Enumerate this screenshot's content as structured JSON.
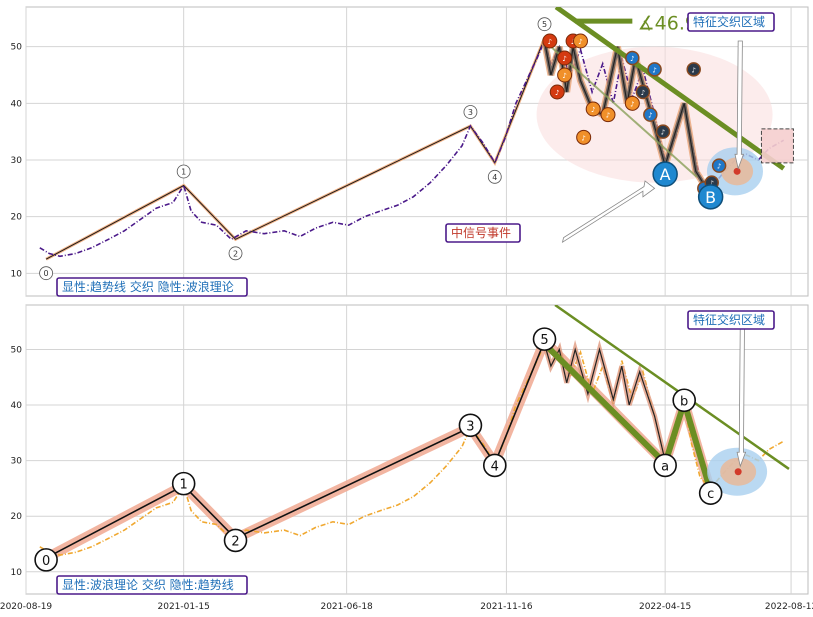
{
  "chart_data": [
    {
      "type": "line",
      "panel": "top",
      "xlim": [
        "2020-08-19",
        "2022-08-28"
      ],
      "ylim": [
        6,
        57
      ],
      "yticks": [
        10,
        20,
        30,
        40,
        50
      ],
      "grid": true,
      "series": [],
      "price": [
        [
          "2020-09-01",
          14.5
        ],
        [
          "2020-09-10",
          13.5
        ],
        [
          "2020-09-20",
          13.0
        ],
        [
          "2020-10-05",
          13.5
        ],
        [
          "2020-10-20",
          14.5
        ],
        [
          "2020-11-05",
          16.0
        ],
        [
          "2020-11-20",
          17.5
        ],
        [
          "2020-12-05",
          19.5
        ],
        [
          "2020-12-20",
          21.5
        ],
        [
          "2021-01-05",
          22.5
        ],
        [
          "2021-01-15",
          25.5
        ],
        [
          "2021-01-22",
          21.0
        ],
        [
          "2021-02-01",
          19.0
        ],
        [
          "2021-02-15",
          18.5
        ],
        [
          "2021-03-01",
          16.0
        ],
        [
          "2021-03-15",
          17.5
        ],
        [
          "2021-04-01",
          17.0
        ],
        [
          "2021-04-20",
          17.5
        ],
        [
          "2021-05-05",
          16.5
        ],
        [
          "2021-05-20",
          18.0
        ],
        [
          "2021-06-05",
          19.0
        ],
        [
          "2021-06-20",
          18.5
        ],
        [
          "2021-07-05",
          20.0
        ],
        [
          "2021-07-20",
          21.0
        ],
        [
          "2021-08-05",
          22.0
        ],
        [
          "2021-08-20",
          23.5
        ],
        [
          "2021-09-05",
          26.0
        ],
        [
          "2021-09-20",
          29.0
        ],
        [
          "2021-10-05",
          32.5
        ],
        [
          "2021-10-13",
          36.0
        ],
        [
          "2021-10-25",
          33.0
        ],
        [
          "2021-11-05",
          29.5
        ],
        [
          "2021-11-15",
          34.0
        ],
        [
          "2021-11-25",
          40.0
        ],
        [
          "2021-12-05",
          44.0
        ],
        [
          "2021-12-15",
          48.0
        ],
        [
          "2021-12-22",
          51.0
        ],
        [
          "2021-12-28",
          47.0
        ],
        [
          "2022-01-05",
          50.0
        ],
        [
          "2022-01-15",
          45.0
        ],
        [
          "2022-01-25",
          49.5
        ],
        [
          "2022-02-05",
          42.0
        ],
        [
          "2022-02-15",
          47.0
        ],
        [
          "2022-02-25",
          40.0
        ],
        [
          "2022-03-05",
          48.0
        ],
        [
          "2022-03-15",
          41.0
        ],
        [
          "2022-03-25",
          46.0
        ],
        [
          "2022-04-05",
          38.0
        ],
        [
          "2022-04-15",
          30.0
        ],
        [
          "2022-04-25",
          34.0
        ],
        [
          "2022-05-03",
          40.0
        ],
        [
          "2022-05-10",
          33.0
        ],
        [
          "2022-05-18",
          27.0
        ],
        [
          "2022-05-28",
          25.0
        ],
        [
          "2022-06-08",
          27.5
        ],
        [
          "2022-06-20",
          30.0
        ],
        [
          "2022-07-01",
          31.0
        ],
        [
          "2022-07-12",
          30.0
        ],
        [
          "2022-07-22",
          32.0
        ],
        [
          "2022-08-05",
          33.5
        ]
      ],
      "wave": [
        [
          "2020-09-07",
          12.5
        ],
        [
          "2021-01-15",
          25.5
        ],
        [
          "2021-03-05",
          16.0
        ],
        [
          "2021-10-13",
          36.0
        ],
        [
          "2021-11-05",
          29.5
        ],
        [
          "2021-12-22",
          51.5
        ]
      ],
      "wave_labels": [
        "0",
        "1",
        "2",
        "3",
        "4",
        "5"
      ],
      "signals_orange": [
        [
          "2021-12-27",
          51
        ],
        [
          "2022-01-03",
          42
        ],
        [
          "2022-01-10",
          48
        ],
        [
          "2022-01-18",
          51
        ],
        [
          "2022-01-25",
          51
        ],
        [
          "2022-01-10",
          45
        ],
        [
          "2022-02-06",
          39
        ],
        [
          "2022-02-20",
          38
        ],
        [
          "2022-03-15",
          40
        ],
        [
          "2022-01-28",
          34
        ]
      ],
      "signals_blue": [
        [
          "2022-03-15",
          48
        ],
        [
          "2022-03-25",
          42
        ],
        [
          "2022-04-01",
          38
        ],
        [
          "2022-04-13",
          35
        ],
        [
          "2022-04-05",
          46
        ],
        [
          "2022-05-12",
          46
        ],
        [
          "2022-05-22",
          25
        ],
        [
          "2022-05-29",
          26
        ],
        [
          "2022-06-05",
          29
        ]
      ],
      "letters": [
        "A",
        "B"
      ],
      "trend_angle_label": "∡46.9°",
      "legend_text": "显性:趋势线 交织 隐性:波浪理论",
      "annotation_mid": "中信号事件",
      "annotation_zone": "特征交织区域"
    },
    {
      "type": "line",
      "panel": "bottom",
      "xlim": [
        "2020-08-19",
        "2022-08-28"
      ],
      "ylim": [
        6,
        58
      ],
      "yticks": [
        10,
        20,
        30,
        40,
        50
      ],
      "grid": true,
      "series": [],
      "x_tick_labels": [
        "2020-08-19",
        "2021-01-15",
        "2021-06-18",
        "2021-11-16",
        "2022-04-15",
        "2022-08-12"
      ],
      "price": [
        [
          "2020-09-01",
          14.5
        ],
        [
          "2020-09-10",
          13.5
        ],
        [
          "2020-09-20",
          13.0
        ],
        [
          "2020-10-05",
          13.5
        ],
        [
          "2020-10-20",
          14.5
        ],
        [
          "2020-11-05",
          16.0
        ],
        [
          "2020-11-20",
          17.5
        ],
        [
          "2020-12-05",
          19.5
        ],
        [
          "2020-12-20",
          21.5
        ],
        [
          "2021-01-05",
          22.5
        ],
        [
          "2021-01-15",
          25.5
        ],
        [
          "2021-01-22",
          21.0
        ],
        [
          "2021-02-01",
          19.0
        ],
        [
          "2021-02-15",
          18.5
        ],
        [
          "2021-03-01",
          16.0
        ],
        [
          "2021-03-15",
          17.5
        ],
        [
          "2021-04-01",
          17.0
        ],
        [
          "2021-04-20",
          17.5
        ],
        [
          "2021-05-05",
          16.5
        ],
        [
          "2021-05-20",
          18.0
        ],
        [
          "2021-06-05",
          19.0
        ],
        [
          "2021-06-20",
          18.5
        ],
        [
          "2021-07-05",
          20.0
        ],
        [
          "2021-07-20",
          21.0
        ],
        [
          "2021-08-05",
          22.0
        ],
        [
          "2021-08-20",
          23.5
        ],
        [
          "2021-09-05",
          26.0
        ],
        [
          "2021-09-20",
          29.0
        ],
        [
          "2021-10-05",
          32.5
        ],
        [
          "2021-10-13",
          36.0
        ],
        [
          "2021-10-25",
          33.0
        ],
        [
          "2021-11-05",
          29.5
        ],
        [
          "2021-11-15",
          34.0
        ],
        [
          "2021-11-25",
          40.0
        ],
        [
          "2021-12-05",
          44.0
        ],
        [
          "2021-12-15",
          48.0
        ],
        [
          "2021-12-22",
          51.0
        ],
        [
          "2021-12-28",
          47.0
        ],
        [
          "2022-01-05",
          50.0
        ],
        [
          "2022-01-15",
          45.0
        ],
        [
          "2022-01-25",
          49.5
        ],
        [
          "2022-02-05",
          42.0
        ],
        [
          "2022-02-15",
          47.0
        ],
        [
          "2022-02-25",
          40.0
        ],
        [
          "2022-03-05",
          48.0
        ],
        [
          "2022-03-15",
          41.0
        ],
        [
          "2022-03-25",
          46.0
        ],
        [
          "2022-04-05",
          38.0
        ],
        [
          "2022-04-15",
          30.0
        ],
        [
          "2022-04-25",
          34.0
        ],
        [
          "2022-05-03",
          40.0
        ],
        [
          "2022-05-10",
          33.0
        ],
        [
          "2022-05-18",
          27.0
        ],
        [
          "2022-05-28",
          25.0
        ],
        [
          "2022-06-08",
          27.5
        ],
        [
          "2022-06-20",
          30.0
        ],
        [
          "2022-07-01",
          31.0
        ],
        [
          "2022-07-12",
          30.0
        ],
        [
          "2022-07-22",
          32.0
        ],
        [
          "2022-08-05",
          33.5
        ]
      ],
      "wave": [
        [
          "2020-09-07",
          12.5
        ],
        [
          "2021-01-15",
          25.5
        ],
        [
          "2021-03-05",
          16.0
        ],
        [
          "2021-10-13",
          36.0
        ],
        [
          "2021-11-05",
          29.5
        ],
        [
          "2021-12-22",
          51.5
        ],
        [
          "2022-04-15",
          29.5
        ],
        [
          "2022-05-03",
          40.5
        ],
        [
          "2022-05-28",
          24.5
        ]
      ],
      "wave_labels": [
        "0",
        "1",
        "2",
        "3",
        "4",
        "5",
        "a",
        "b",
        "c"
      ],
      "legend_text": "显性:波浪理论 交织 隐性:趋势线",
      "annotation_zone": "特征交织区域"
    }
  ]
}
